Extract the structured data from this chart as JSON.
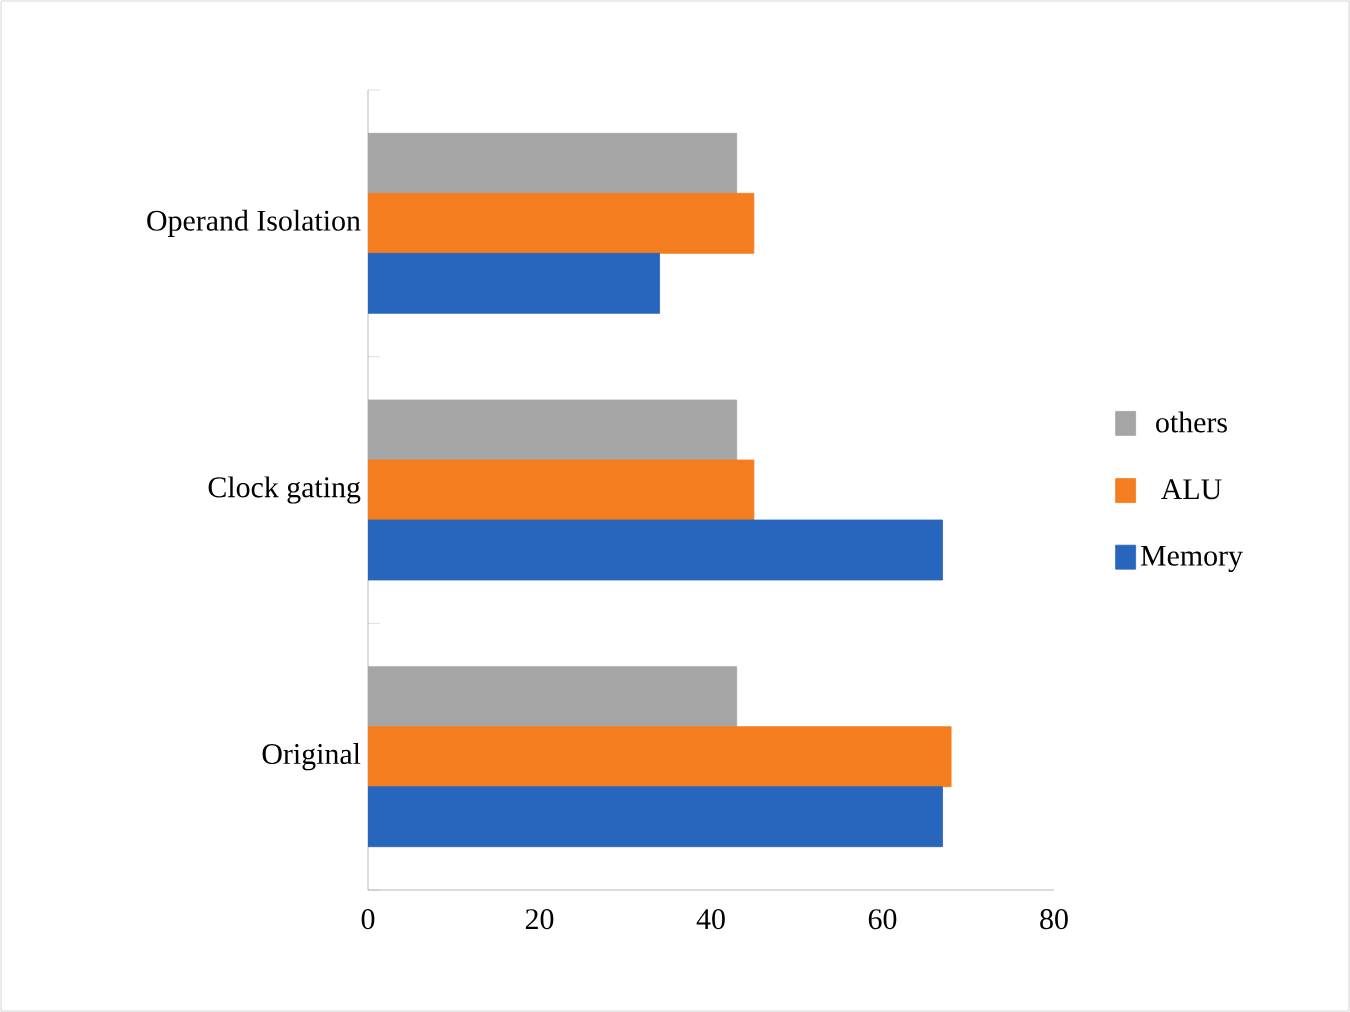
{
  "chart_data": {
    "type": "bar",
    "orientation": "horizontal",
    "categories": [
      "Operand Isolation",
      "Clock gating",
      "Original"
    ],
    "series": [
      {
        "name": "others",
        "color": "#a5a5a5",
        "values": [
          43,
          43,
          43
        ]
      },
      {
        "name": "ALU",
        "color": "#f47d20",
        "values": [
          45,
          45,
          68
        ]
      },
      {
        "name": "Memory",
        "color": "#2866bd",
        "values": [
          34,
          67,
          67
        ]
      }
    ],
    "xlim": [
      0,
      80
    ],
    "xticks": [
      0,
      20,
      40,
      60,
      80
    ],
    "grid": false,
    "legend": "right"
  }
}
